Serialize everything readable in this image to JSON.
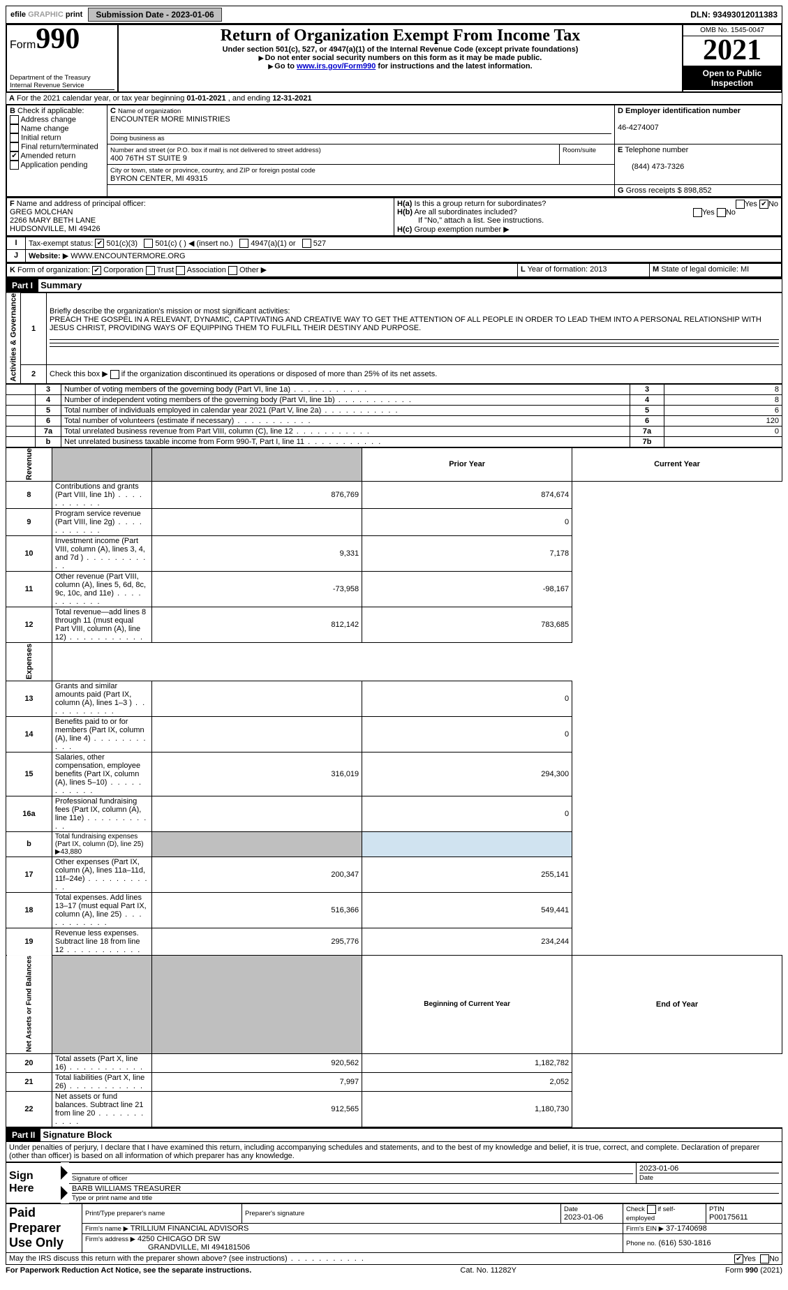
{
  "topbar": {
    "efile_prefix": "efile",
    "efile_gray": "GRAPHIC",
    "efile_suffix": "print",
    "submission_btn": "Submission Date - 2023-01-06",
    "dln": "DLN: 93493012011383"
  },
  "header": {
    "form_word": "Form",
    "form_number": "990",
    "title": "Return of Organization Exempt From Income Tax",
    "subtitle": "Under section 501(c), 527, or 4947(a)(1) of the Internal Revenue Code (except private foundations)",
    "line1": "Do not enter social security numbers on this form as it may be made public.",
    "line2_pre": "Go to ",
    "line2_link": "www.irs.gov/Form990",
    "line2_post": " for instructions and the latest information.",
    "dept": "Department of the Treasury",
    "irs": "Internal Revenue Service",
    "omb": "OMB No. 1545-0047",
    "year": "2021",
    "open_public": "Open to Public Inspection"
  },
  "A": {
    "text_pre": "For the 2021 calendar year, or tax year beginning ",
    "begin": "01-01-2021",
    "mid": " , and ending ",
    "end": "12-31-2021"
  },
  "B": {
    "label": "Check if applicable:",
    "items": [
      "Address change",
      "Name change",
      "Initial return",
      "Final return/terminated",
      "Amended return",
      "Application pending"
    ],
    "checked_index": 4
  },
  "C": {
    "name_label": "Name of organization",
    "name": "ENCOUNTER MORE MINISTRIES",
    "dba_label": "Doing business as",
    "street_label": "Number and street (or P.O. box if mail is not delivered to street address)",
    "room_label": "Room/suite",
    "street": "400 76TH ST SUITE 9",
    "city_label": "City or town, state or province, country, and ZIP or foreign postal code",
    "city": "BYRON CENTER, MI  49315"
  },
  "D": {
    "label": "Employer identification number",
    "value": "46-4274007"
  },
  "E": {
    "label": "Telephone number",
    "value": "(844) 473-7326"
  },
  "G": {
    "label": "Gross receipts $",
    "value": "898,852"
  },
  "F": {
    "label": "Name and address of principal officer:",
    "name": "GREG MOLCHAN",
    "addr1": "2266 MARY BETH LANE",
    "addr2": "HUDSONVILLE, MI  49426"
  },
  "H": {
    "a_label": "Is this a group return for subordinates?",
    "b_label": "Are all subordinates included?",
    "b_note": "If \"No,\" attach a list. See instructions.",
    "c_label": "Group exemption number",
    "yes": "Yes",
    "no": "No",
    "a_checked": "no"
  },
  "I": {
    "label": "Tax-exempt status:",
    "opts": [
      "501(c)(3)",
      "501(c) (   ) ◀ (insert no.)",
      "4947(a)(1) or",
      "527"
    ],
    "checked_index": 0
  },
  "J": {
    "label": "Website:",
    "value": "WWW.ENCOUNTERMORE.ORG"
  },
  "K": {
    "label": "Form of organization:",
    "opts": [
      "Corporation",
      "Trust",
      "Association",
      "Other"
    ],
    "checked_index": 0
  },
  "L": {
    "label": "Year of formation:",
    "value": "2013"
  },
  "M": {
    "label": "State of legal domicile:",
    "value": "MI"
  },
  "parts": {
    "p1": "Part I",
    "p1_title": "Summary",
    "p2": "Part II",
    "p2_title": "Signature Block"
  },
  "summary_vert": {
    "gov": "Activities & Governance",
    "rev": "Revenue",
    "exp": "Expenses",
    "net": "Net Assets or Fund Balances"
  },
  "gov": {
    "line1_label": "Briefly describe the organization's mission or most significant activities:",
    "line1_text": "PREACH THE GOSPEL IN A RELEVANT, DYNAMIC, CAPTIVATING AND CREATIVE WAY TO GET THE ATTENTION OF ALL PEOPLE IN ORDER TO LEAD THEM INTO A PERSONAL RELATIONSHIP WITH JESUS CHRIST, PROVIDING WAYS OF EQUIPPING THEM TO FULFILL THEIR DESTINY AND PURPOSE.",
    "line2": "Check this box ▶    if the organization discontinued its operations or disposed of more than 25% of its net assets.",
    "rows": [
      {
        "n": "3",
        "label": "Number of voting members of the governing body (Part VI, line 1a)",
        "box": "3",
        "val": "8"
      },
      {
        "n": "4",
        "label": "Number of independent voting members of the governing body (Part VI, line 1b)",
        "box": "4",
        "val": "8"
      },
      {
        "n": "5",
        "label": "Total number of individuals employed in calendar year 2021 (Part V, line 2a)",
        "box": "5",
        "val": "6"
      },
      {
        "n": "6",
        "label": "Total number of volunteers (estimate if necessary)",
        "box": "6",
        "val": "120"
      },
      {
        "n": "7a",
        "label": "Total unrelated business revenue from Part VIII, column (C), line 12",
        "box": "7a",
        "val": "0"
      },
      {
        "n": "b",
        "label": "Net unrelated business taxable income from Form 990-T, Part I, line 11",
        "box": "7b",
        "val": ""
      }
    ]
  },
  "headers2": {
    "prior": "Prior Year",
    "current": "Current Year",
    "begin": "Beginning of Current Year",
    "end": "End of Year"
  },
  "rev": [
    {
      "n": "8",
      "label": "Contributions and grants (Part VIII, line 1h)",
      "p": "876,769",
      "c": "874,674"
    },
    {
      "n": "9",
      "label": "Program service revenue (Part VIII, line 2g)",
      "p": "",
      "c": "0"
    },
    {
      "n": "10",
      "label": "Investment income (Part VIII, column (A), lines 3, 4, and 7d )",
      "p": "9,331",
      "c": "7,178"
    },
    {
      "n": "11",
      "label": "Other revenue (Part VIII, column (A), lines 5, 6d, 8c, 9c, 10c, and 11e)",
      "p": "-73,958",
      "c": "-98,167"
    },
    {
      "n": "12",
      "label": "Total revenue—add lines 8 through 11 (must equal Part VIII, column (A), line 12)",
      "p": "812,142",
      "c": "783,685"
    }
  ],
  "exp": [
    {
      "n": "13",
      "label": "Grants and similar amounts paid (Part IX, column (A), lines 1–3 )",
      "p": "",
      "c": "0"
    },
    {
      "n": "14",
      "label": "Benefits paid to or for members (Part IX, column (A), line 4)",
      "p": "",
      "c": "0"
    },
    {
      "n": "15",
      "label": "Salaries, other compensation, employee benefits (Part IX, column (A), lines 5–10)",
      "p": "316,019",
      "c": "294,300"
    },
    {
      "n": "16a",
      "label": "Professional fundraising fees (Part IX, column (A), line 11e)",
      "p": "",
      "c": "0"
    },
    {
      "n": "b",
      "label": "Total fundraising expenses (Part IX, column (D), line 25) ▶43,880",
      "p": "GRAY",
      "c": "GRAY"
    },
    {
      "n": "17",
      "label": "Other expenses (Part IX, column (A), lines 11a–11d, 11f–24e)",
      "p": "200,347",
      "c": "255,141"
    },
    {
      "n": "18",
      "label": "Total expenses. Add lines 13–17 (must equal Part IX, column (A), line 25)",
      "p": "516,366",
      "c": "549,441"
    },
    {
      "n": "19",
      "label": "Revenue less expenses. Subtract line 18 from line 12",
      "p": "295,776",
      "c": "234,244"
    }
  ],
  "net": [
    {
      "n": "20",
      "label": "Total assets (Part X, line 16)",
      "p": "920,562",
      "c": "1,182,782"
    },
    {
      "n": "21",
      "label": "Total liabilities (Part X, line 26)",
      "p": "7,997",
      "c": "2,052"
    },
    {
      "n": "22",
      "label": "Net assets or fund balances. Subtract line 21 from line 20",
      "p": "912,565",
      "c": "1,180,730"
    }
  ],
  "sig": {
    "penalty": "Under penalties of perjury, I declare that I have examined this return, including accompanying schedules and statements, and to the best of my knowledge and belief, it is true, correct, and complete. Declaration of preparer (other than officer) is based on all information of which preparer has any knowledge.",
    "sign_here": "Sign Here",
    "sig_officer": "Signature of officer",
    "date_label": "Date",
    "date": "2023-01-06",
    "name_title": "BARB WILLIAMS TREASURER",
    "name_title_label": "Type or print name and title",
    "paid": "Paid Preparer Use Only",
    "h1": "Print/Type preparer's name",
    "h2": "Preparer's signature",
    "h3": "Date",
    "h4": "Check      if self-employed",
    "h5": "PTIN",
    "prep_date": "2023-01-06",
    "ptin": "P00175611",
    "firm_name_label": "Firm's name    ▶",
    "firm_name": "TRILLIUM FINANCIAL ADVISORS",
    "firm_ein_label": "Firm's EIN ▶",
    "firm_ein": "37-1740698",
    "firm_addr_label": "Firm's address ▶",
    "firm_addr1": "4250 CHICAGO DR SW",
    "firm_addr2": "GRANDVILLE, MI  494181506",
    "phone_label": "Phone no.",
    "phone": "(616) 530-1816",
    "discuss": "May the IRS discuss this return with the preparer shown above? (see instructions)",
    "discuss_checked": "yes"
  },
  "footer": {
    "left": "For Paperwork Reduction Act Notice, see the separate instructions.",
    "mid": "Cat. No. 11282Y",
    "right_pre": "Form ",
    "right_bold": "990",
    "right_post": " (2021)"
  },
  "colors": {
    "link": "#0000cc",
    "gray_bg": "#bfbfbf",
    "blue_bg": "#d0e3f0"
  }
}
